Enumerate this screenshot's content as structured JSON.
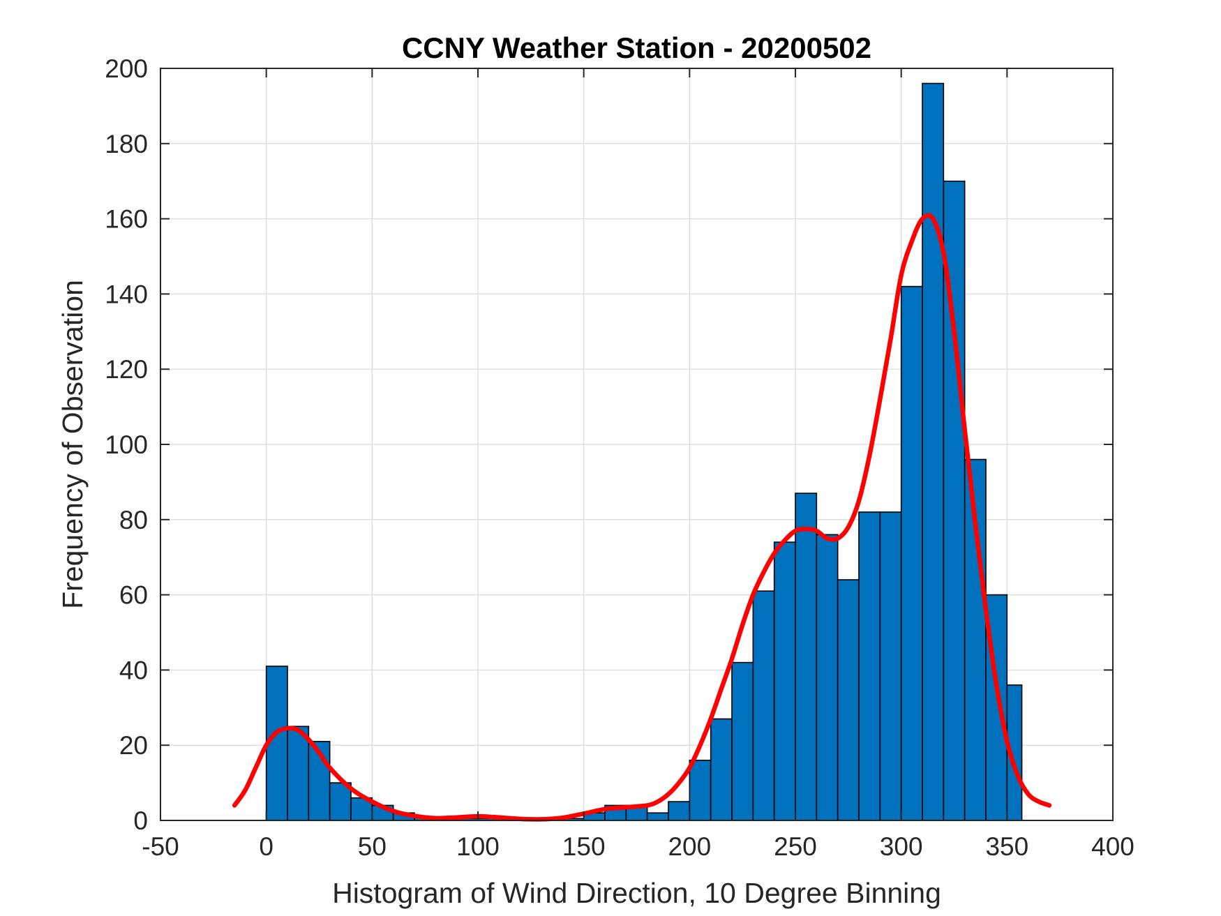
{
  "chart_data": {
    "type": "bar",
    "title": "CCNY Weather Station - 20200502",
    "xlabel": "Histogram of Wind Direction, 10 Degree Binning",
    "ylabel": "Frequency of Observation",
    "xlim": [
      -50,
      400
    ],
    "ylim": [
      0,
      200
    ],
    "xticks": [
      "-50",
      "0",
      "50",
      "100",
      "150",
      "200",
      "250",
      "300",
      "350",
      "400"
    ],
    "yticks": [
      "0",
      "20",
      "40",
      "60",
      "80",
      "100",
      "120",
      "140",
      "160",
      "180",
      "200"
    ],
    "grid": true,
    "bin_width": 10,
    "bin_edges": [
      0,
      10,
      20,
      30,
      40,
      50,
      60,
      70,
      80,
      90,
      100,
      110,
      120,
      130,
      140,
      150,
      160,
      170,
      180,
      190,
      200,
      210,
      220,
      230,
      240,
      250,
      260,
      270,
      280,
      290,
      300,
      310,
      320,
      330,
      340,
      350,
      357
    ],
    "counts": [
      41,
      25,
      21,
      10,
      6,
      4,
      2,
      1,
      0.5,
      0.5,
      0.5,
      0.5,
      0.5,
      0.5,
      0.5,
      2,
      4,
      4,
      2,
      5,
      16,
      27,
      42,
      61,
      74,
      87,
      76,
      64,
      82,
      82,
      142,
      196,
      170,
      96,
      60,
      36
    ],
    "bar_color": "#0072BD",
    "bar_edge_color": "#000000",
    "fit_curve": {
      "color": "#FF0000",
      "x": [
        -15,
        -10,
        -5,
        0,
        5,
        10,
        15,
        20,
        25,
        30,
        40,
        50,
        60,
        70,
        80,
        90,
        100,
        110,
        120,
        130,
        140,
        150,
        160,
        170,
        180,
        185,
        190,
        195,
        200,
        205,
        210,
        215,
        220,
        225,
        230,
        235,
        240,
        245,
        250,
        255,
        260,
        265,
        270,
        275,
        280,
        285,
        290,
        295,
        300,
        305,
        310,
        315,
        320,
        325,
        330,
        335,
        340,
        345,
        350,
        355,
        360,
        365,
        370
      ],
      "y": [
        4,
        8,
        14,
        20,
        23.5,
        24.5,
        24,
        21.5,
        18,
        14,
        8.5,
        5,
        2.5,
        1.2,
        0.6,
        0.8,
        1.1,
        0.8,
        0.4,
        0.3,
        0.7,
        1.8,
        3,
        3.5,
        4,
        5,
        7,
        10,
        14,
        20,
        27,
        35,
        43,
        52,
        60,
        66,
        71,
        74.5,
        77,
        77.5,
        77,
        75,
        75,
        78,
        85,
        97,
        112,
        128,
        145,
        154,
        160,
        160,
        151,
        130,
        104,
        79,
        56,
        36,
        21,
        12,
        7,
        5,
        4
      ]
    }
  }
}
